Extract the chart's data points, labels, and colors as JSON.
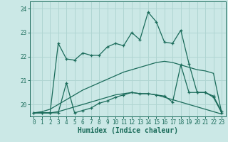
{
  "xlabel": "Humidex (Indice chaleur)",
  "background_color": "#cbe8e6",
  "grid_color": "#b0d5d2",
  "line_color": "#1a6b5a",
  "xlim": [
    -0.5,
    23.5
  ],
  "ylim": [
    19.5,
    24.3
  ],
  "yticks": [
    20,
    21,
    22,
    23,
    24
  ],
  "xticks": [
    0,
    1,
    2,
    3,
    4,
    5,
    6,
    7,
    8,
    9,
    10,
    11,
    12,
    13,
    14,
    15,
    16,
    17,
    18,
    19,
    20,
    21,
    22,
    23
  ],
  "s1_x": [
    0,
    1,
    2,
    3,
    4,
    5,
    6,
    7,
    8,
    9,
    10,
    11,
    12,
    13,
    14,
    15,
    16,
    17,
    18,
    19,
    20,
    21,
    22,
    23
  ],
  "s1_y": [
    19.65,
    19.65,
    19.65,
    22.55,
    21.9,
    21.85,
    22.15,
    22.05,
    22.05,
    22.4,
    22.55,
    22.45,
    23.0,
    22.7,
    23.85,
    23.45,
    22.6,
    22.55,
    23.1,
    21.7,
    20.5,
    20.5,
    20.35,
    19.7
  ],
  "s2_x": [
    0,
    1,
    2,
    3,
    4,
    5,
    6,
    7,
    8,
    9,
    10,
    11,
    12,
    13,
    14,
    15,
    16,
    17,
    18,
    19,
    20,
    21,
    22,
    23
  ],
  "s2_y": [
    19.65,
    19.65,
    19.65,
    19.65,
    20.9,
    19.65,
    19.75,
    19.85,
    20.05,
    20.15,
    20.3,
    20.4,
    20.5,
    20.45,
    20.45,
    20.4,
    20.35,
    20.1,
    21.65,
    20.5,
    20.5,
    20.5,
    20.3,
    19.65
  ],
  "s3_x": [
    0,
    1,
    2,
    3,
    4,
    5,
    6,
    7,
    8,
    9,
    10,
    11,
    12,
    13,
    14,
    15,
    16,
    17,
    18,
    19,
    20,
    21,
    22,
    23
  ],
  "s3_y": [
    19.65,
    19.7,
    19.8,
    20.0,
    20.2,
    20.4,
    20.6,
    20.75,
    20.9,
    21.05,
    21.2,
    21.35,
    21.45,
    21.55,
    21.65,
    21.75,
    21.8,
    21.75,
    21.65,
    21.55,
    21.45,
    21.4,
    21.3,
    19.65
  ],
  "s4_x": [
    0,
    1,
    2,
    3,
    4,
    5,
    6,
    7,
    8,
    9,
    10,
    11,
    12,
    13,
    14,
    15,
    16,
    17,
    18,
    19,
    20,
    21,
    22,
    23
  ],
  "s4_y": [
    19.65,
    19.65,
    19.65,
    19.7,
    19.8,
    19.9,
    20.0,
    20.1,
    20.2,
    20.3,
    20.4,
    20.45,
    20.5,
    20.45,
    20.45,
    20.4,
    20.3,
    20.2,
    20.1,
    20.0,
    19.9,
    19.8,
    19.7,
    19.6
  ]
}
